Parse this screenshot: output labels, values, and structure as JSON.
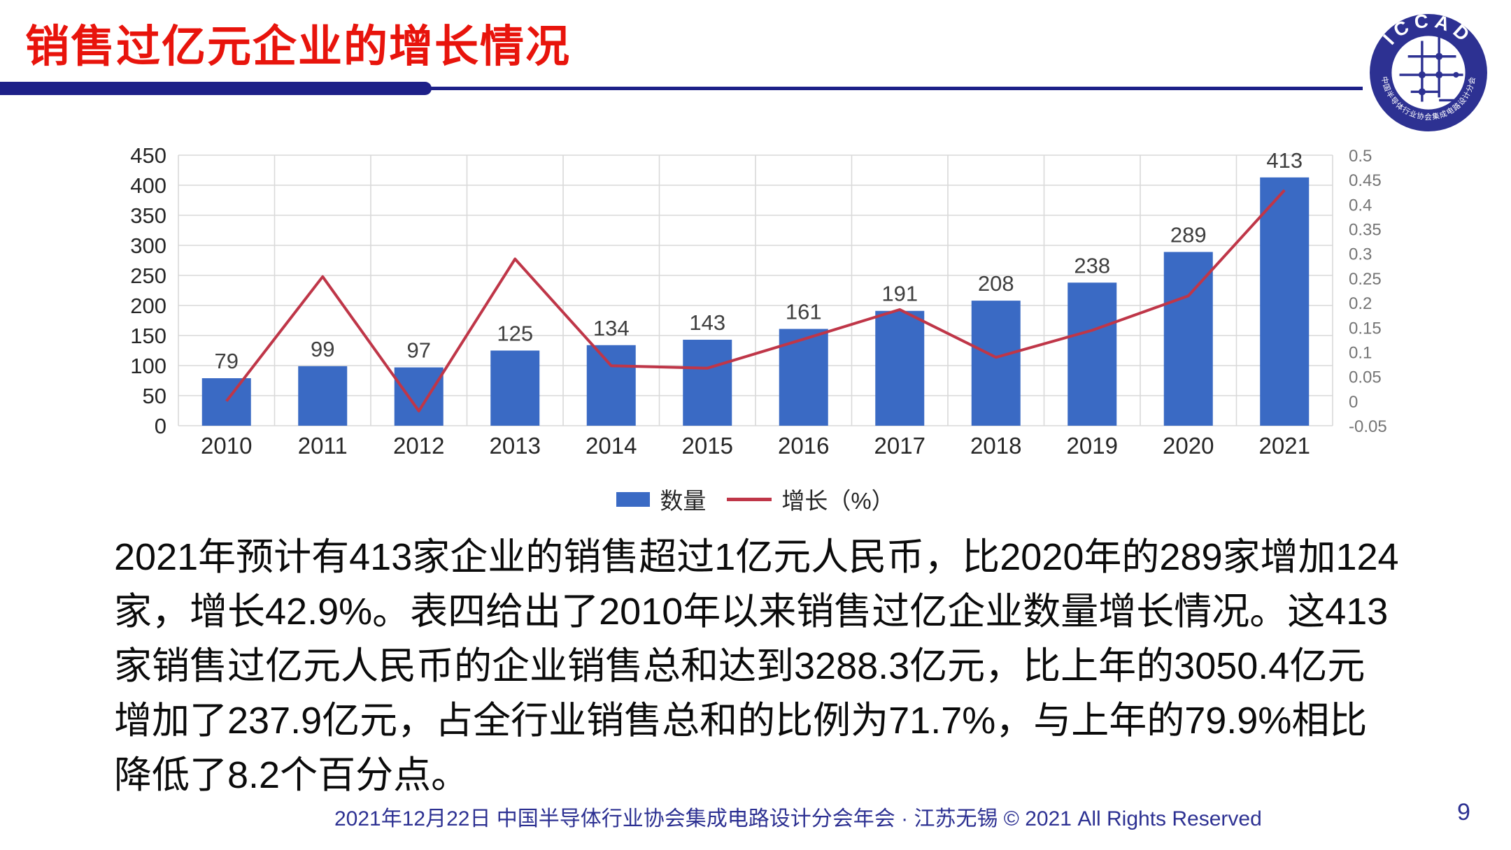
{
  "theme": {
    "title_color": "#e8140c",
    "underline_color": "#1d2088",
    "logo_color": "#2d3192",
    "footer_color": "#2d3192",
    "grid_color": "#d9d9d9",
    "axis_label_color": "#3f3f3f",
    "right_axis_label_color": "#757575",
    "value_label_color": "#3f3f3f"
  },
  "header": {
    "title": "销售过亿元企业的增长情况"
  },
  "logo": {
    "text": "ICCAD",
    "ring_text": "中国半导体行业协会集成电路设计分会"
  },
  "chart_data": {
    "type": "bar",
    "title": "销售过亿元企业的增长情况",
    "categories": [
      "2010",
      "2011",
      "2012",
      "2013",
      "2014",
      "2015",
      "2016",
      "2017",
      "2018",
      "2019",
      "2020",
      "2021"
    ],
    "series": [
      {
        "name": "数量",
        "type": "bar",
        "axis": "left",
        "color": "#3a6ac4",
        "values": [
          79,
          99,
          97,
          125,
          134,
          143,
          161,
          191,
          208,
          238,
          289,
          413
        ],
        "data_labels": [
          "79",
          "99",
          "97",
          "125",
          "134",
          "143",
          "161",
          "191",
          "208",
          "238",
          "289",
          "413"
        ]
      },
      {
        "name": "增长（%）",
        "type": "line",
        "axis": "right",
        "color": "#bf3648",
        "values": [
          0.0,
          0.253,
          -0.02,
          0.289,
          0.072,
          0.067,
          0.126,
          0.186,
          0.089,
          0.144,
          0.214,
          0.429
        ]
      }
    ],
    "left_axis": {
      "min": 0,
      "max": 450,
      "step": 50,
      "ticks": [
        "450",
        "400",
        "350",
        "300",
        "250",
        "200",
        "150",
        "100",
        "50",
        "0"
      ]
    },
    "right_axis": {
      "min": -0.05,
      "max": 0.5,
      "step": 0.05,
      "ticks": [
        "0.5",
        "0.45",
        "0.4",
        "0.35",
        "0.3",
        "0.25",
        "0.2",
        "0.15",
        "0.1",
        "0.05",
        "0",
        "-0.05"
      ]
    },
    "grid": true,
    "legend_position": "bottom"
  },
  "legend": {
    "items": [
      {
        "label": "数量",
        "swatch": "bar",
        "color": "#3a6ac4"
      },
      {
        "label": "增长（%）",
        "swatch": "line",
        "color": "#bf3648"
      }
    ]
  },
  "body": {
    "paragraph": "2021年预计有413家企业的销售超过1亿元人民币，比2020年的289家增加124家，增长42.9%。表四给出了2010年以来销售过亿企业数量增长情况。这413家销售过亿元人民币的企业销售总和达到3288.3亿元，比上年的3050.4亿元增加了237.9亿元，占全行业销售总和的比例为71.7%，与上年的79.9%相比降低了8.2个百分点。"
  },
  "footer": {
    "text": "2021年12月22日 中国半导体行业协会集成电路设计分会年会 · 江苏无锡 © 2021 All Rights Reserved",
    "page": "9"
  }
}
